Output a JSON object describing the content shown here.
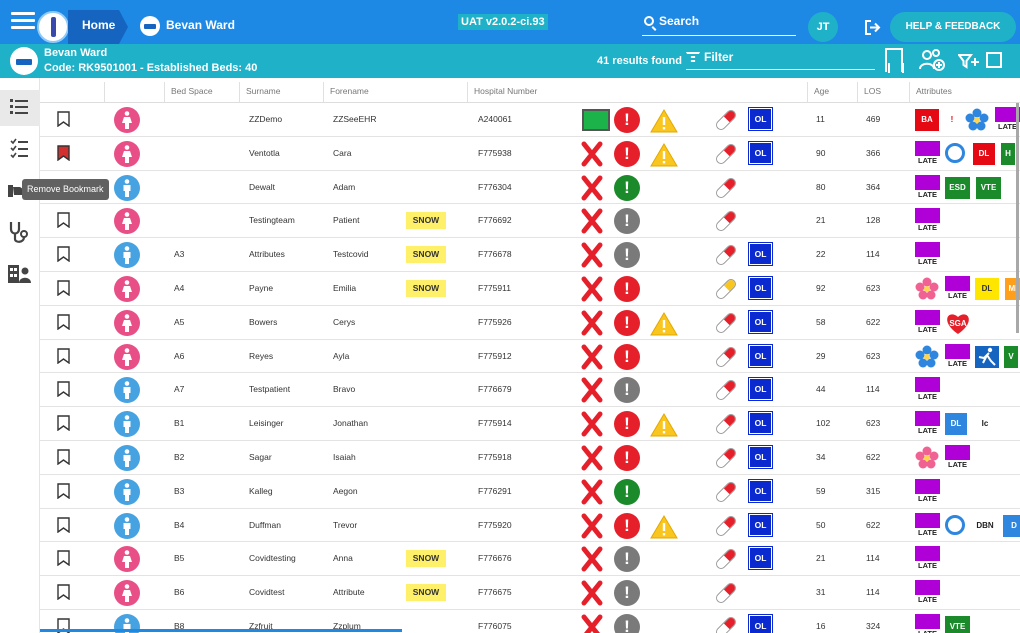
{
  "topbar": {
    "home_label": "Home",
    "ward_label": "Bevan Ward",
    "version": "UAT v2.0.2-ci.93",
    "search_label": "Search",
    "user_initials": "JT",
    "help_label": "HELP & FEEDBACK",
    "color": "#1e88e5"
  },
  "ward": {
    "name": "Bevan Ward",
    "code_line": "Code: RK9501001 - Established Beds: 40",
    "results": "41 results found",
    "filter_placeholder": "Filter",
    "color": "#1fb1c8"
  },
  "nav": {
    "tooltip": "Remove Bookmark",
    "icons": [
      "patient-list-icon",
      "task-list-icon",
      "handover-icon",
      "stethoscope-icon",
      "staff-icon"
    ]
  },
  "columns": {
    "bed_space": "Bed Space",
    "surname": "Surname",
    "forename": "Forename",
    "hospital_number": "Hospital Number",
    "age": "Age",
    "los": "LOS",
    "attributes": "Attributes"
  },
  "rows": [
    {
      "bookmarked": false,
      "gender": "f",
      "bed": "",
      "surname": "ZZDemo",
      "forename": "ZZSeeEHR",
      "snow": "",
      "hosp": "A240061",
      "status": "box",
      "alert": "red",
      "warn": true,
      "pill": "red",
      "ol": "OL",
      "age": "11",
      "los": "469",
      "attrs": [
        {
          "t": "ba",
          "v": "BA"
        },
        {
          "t": "bang",
          "v": "!"
        },
        {
          "t": "flower",
          "v": ""
        },
        {
          "t": "late",
          "v": "LATE"
        }
      ]
    },
    {
      "bookmarked": true,
      "gender": "f",
      "bed": "",
      "surname": "Ventotla",
      "forename": "Cara",
      "snow": "",
      "hosp": "F775938",
      "status": "x",
      "alert": "red",
      "warn": true,
      "pill": "red",
      "ol": "OL",
      "age": "90",
      "los": "366",
      "attrs": [
        {
          "t": "late",
          "v": "LATE"
        },
        {
          "t": "ring",
          "v": ""
        },
        {
          "t": "dl-red",
          "v": "DL"
        },
        {
          "t": "h",
          "v": "H"
        }
      ]
    },
    {
      "bookmarked": false,
      "gender": "m",
      "bed": "",
      "surname": "Dewalt",
      "forename": "Adam",
      "snow": "",
      "hosp": "F776304",
      "status": "x",
      "alert": "green",
      "warn": false,
      "pill": "red",
      "ol": "",
      "age": "80",
      "los": "364",
      "attrs": [
        {
          "t": "late",
          "v": "LATE"
        },
        {
          "t": "esd",
          "v": "ESD"
        },
        {
          "t": "vte",
          "v": "VTE"
        }
      ]
    },
    {
      "bookmarked": false,
      "gender": "f",
      "bed": "",
      "surname": "Testingteam",
      "forename": "Patient",
      "snow": "SNOW",
      "hosp": "F776692",
      "status": "x",
      "alert": "grey",
      "warn": false,
      "pill": "red",
      "ol": "",
      "age": "21",
      "los": "128",
      "attrs": [
        {
          "t": "late",
          "v": "LATE"
        }
      ]
    },
    {
      "bookmarked": false,
      "gender": "m",
      "bed": "A3",
      "surname": "Attributes",
      "forename": "Testcovid",
      "snow": "SNOW",
      "hosp": "F776678",
      "status": "x",
      "alert": "grey",
      "warn": false,
      "pill": "red",
      "ol": "OL",
      "age": "22",
      "los": "114",
      "attrs": [
        {
          "t": "late",
          "v": "LATE"
        }
      ]
    },
    {
      "bookmarked": false,
      "gender": "f",
      "bed": "A4",
      "surname": "Payne",
      "forename": "Emilia",
      "snow": "SNOW",
      "hosp": "F775911",
      "status": "x",
      "alert": "red",
      "warn": false,
      "pill": "yellow",
      "ol": "OL",
      "age": "92",
      "los": "623",
      "attrs": [
        {
          "t": "flower",
          "v": "pink"
        },
        {
          "t": "late",
          "v": "LATE"
        },
        {
          "t": "dl-yel",
          "v": "DL"
        },
        {
          "t": "mi",
          "v": "MI"
        }
      ]
    },
    {
      "bookmarked": false,
      "gender": "f",
      "bed": "A5",
      "surname": "Bowers",
      "forename": "Cerys",
      "snow": "",
      "hosp": "F775926",
      "status": "x",
      "alert": "red",
      "warn": true,
      "pill": "red",
      "ol": "OL",
      "age": "58",
      "los": "622",
      "attrs": [
        {
          "t": "late",
          "v": "LATE"
        },
        {
          "t": "sga",
          "v": "SGA"
        }
      ]
    },
    {
      "bookmarked": false,
      "gender": "f",
      "bed": "A6",
      "surname": "Reyes",
      "forename": "Ayla",
      "snow": "",
      "hosp": "F775912",
      "status": "x",
      "alert": "red",
      "warn": false,
      "pill": "red",
      "ol": "OL",
      "age": "29",
      "los": "623",
      "attrs": [
        {
          "t": "flower",
          "v": ""
        },
        {
          "t": "late",
          "v": "LATE"
        },
        {
          "t": "fall",
          "v": ""
        },
        {
          "t": "v",
          "v": "V"
        }
      ]
    },
    {
      "bookmarked": false,
      "gender": "m",
      "bed": "A7",
      "surname": "Testpatient",
      "forename": "Bravo",
      "snow": "",
      "hosp": "F776679",
      "status": "x",
      "alert": "grey",
      "warn": false,
      "pill": "red",
      "ol": "OL",
      "age": "44",
      "los": "114",
      "attrs": [
        {
          "t": "late",
          "v": "LATE"
        }
      ]
    },
    {
      "bookmarked": false,
      "gender": "m",
      "bed": "B1",
      "surname": "Leisinger",
      "forename": "Jonathan",
      "snow": "",
      "hosp": "F775914",
      "status": "x",
      "alert": "red",
      "warn": true,
      "pill": "red",
      "ol": "OL",
      "age": "102",
      "los": "623",
      "attrs": [
        {
          "t": "late",
          "v": "LATE"
        },
        {
          "t": "dl-blue",
          "v": "DL"
        },
        {
          "t": "txt",
          "v": "Ic"
        }
      ]
    },
    {
      "bookmarked": false,
      "gender": "m",
      "bed": "B2",
      "surname": "Sagar",
      "forename": "Isaiah",
      "snow": "",
      "hosp": "F775918",
      "status": "x",
      "alert": "red",
      "warn": false,
      "pill": "red",
      "ol": "OL",
      "age": "34",
      "los": "622",
      "attrs": [
        {
          "t": "flower",
          "v": "pink"
        },
        {
          "t": "late",
          "v": "LATE"
        }
      ]
    },
    {
      "bookmarked": false,
      "gender": "m",
      "bed": "B3",
      "surname": "Kalleg",
      "forename": "Aegon",
      "snow": "",
      "hosp": "F776291",
      "status": "x",
      "alert": "green",
      "warn": false,
      "pill": "red",
      "ol": "OL",
      "age": "59",
      "los": "315",
      "attrs": [
        {
          "t": "late",
          "v": "LATE"
        }
      ]
    },
    {
      "bookmarked": false,
      "gender": "m",
      "bed": "B4",
      "surname": "Duffman",
      "forename": "Trevor",
      "snow": "",
      "hosp": "F775920",
      "status": "x",
      "alert": "red",
      "warn": true,
      "pill": "red",
      "ol": "OL",
      "age": "50",
      "los": "622",
      "attrs": [
        {
          "t": "late",
          "v": "LATE"
        },
        {
          "t": "ring",
          "v": ""
        },
        {
          "t": "txt",
          "v": "DBN"
        },
        {
          "t": "dl-blue",
          "v": "D"
        }
      ]
    },
    {
      "bookmarked": false,
      "gender": "f",
      "bed": "B5",
      "surname": "Covidtesting",
      "forename": "Anna",
      "snow": "SNOW",
      "hosp": "F776676",
      "status": "x",
      "alert": "grey",
      "warn": false,
      "pill": "red",
      "ol": "OL",
      "age": "21",
      "los": "114",
      "attrs": [
        {
          "t": "late",
          "v": "LATE"
        }
      ]
    },
    {
      "bookmarked": false,
      "gender": "f",
      "bed": "B6",
      "surname": "Covidtest",
      "forename": "Attribute",
      "snow": "SNOW",
      "hosp": "F776675",
      "status": "x",
      "alert": "grey",
      "warn": false,
      "pill": "red",
      "ol": "",
      "age": "31",
      "los": "114",
      "attrs": [
        {
          "t": "late",
          "v": "LATE"
        }
      ]
    },
    {
      "bookmarked": false,
      "gender": "m",
      "bed": "B8",
      "surname": "Zzfruit",
      "forename": "Zzplum",
      "snow": "",
      "hosp": "F776075",
      "status": "x",
      "alert": "grey",
      "warn": false,
      "pill": "red",
      "ol": "OL",
      "age": "16",
      "los": "324",
      "attrs": [
        {
          "t": "late",
          "v": "LATE"
        },
        {
          "t": "vte",
          "v": "VTE"
        }
      ]
    }
  ],
  "colors": {
    "female": "#e84f86",
    "male": "#46a2e0",
    "alert_red": "#e5202a",
    "late_purple": "#b000d8",
    "ol_blue": "#0a2acf"
  }
}
